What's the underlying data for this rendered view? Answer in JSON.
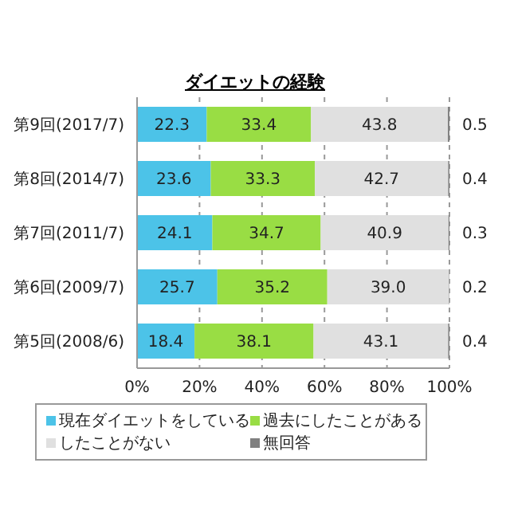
{
  "chart_data": {
    "type": "bar",
    "title": "ダイエットの経験",
    "orientation": "horizontal",
    "stacked": true,
    "categories": [
      "第9回(2017/7)",
      "第8回(2014/7)",
      "第7回(2011/7)",
      "第6回(2009/7)",
      "第5回(2008/6)"
    ],
    "series": [
      {
        "name": "現在ダイエットをしている",
        "color": "#4cc3e8",
        "values": [
          22.3,
          23.6,
          24.1,
          25.7,
          18.4
        ]
      },
      {
        "name": "過去にしたことがある",
        "color": "#99dd44",
        "values": [
          33.4,
          33.3,
          34.7,
          35.2,
          38.1
        ]
      },
      {
        "name": "したことがない",
        "color": "#e0e0e0",
        "values": [
          43.8,
          42.7,
          40.9,
          39.0,
          43.1
        ],
        "value_labels": [
          "43.8",
          "42.7",
          "40.9",
          "39.0",
          "43.1"
        ]
      },
      {
        "name": "無回答",
        "color": "#808080",
        "values": [
          0.5,
          0.4,
          0.3,
          0.2,
          0.4
        ]
      }
    ],
    "xlim": [
      0,
      100
    ],
    "xticks": [
      {
        "value": 0,
        "label": "0%"
      },
      {
        "value": 20,
        "label": "20%"
      },
      {
        "value": 40,
        "label": "40%"
      },
      {
        "value": 60,
        "label": "60%"
      },
      {
        "value": 80,
        "label": "80%"
      },
      {
        "value": 100,
        "label": "100%"
      }
    ],
    "grid": "x",
    "legend": "bottom",
    "data_labels": true
  }
}
